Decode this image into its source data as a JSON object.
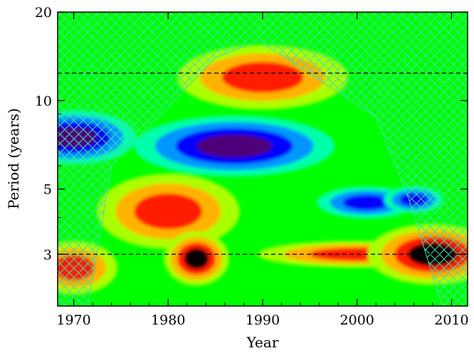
{
  "chart_data": {
    "type": "heatmap",
    "title": "",
    "xlabel": "Year",
    "ylabel": "Period (years)",
    "xlim": [
      1968.3,
      2011.7
    ],
    "ylim": [
      2.0,
      20.0
    ],
    "yscale": "log",
    "x_ticks": [
      1970,
      1980,
      1990,
      2000,
      2010
    ],
    "y_ticks": [
      3,
      5,
      10,
      20
    ],
    "reference_lines": [
      {
        "axis": "y",
        "value": 12.4,
        "style": "dashed"
      },
      {
        "axis": "y",
        "value": 3.0,
        "style": "dashed"
      }
    ],
    "cone_of_influence": {
      "style": "hatched",
      "left_edge": [
        [
          1968.3,
          2.0
        ],
        [
          1971.5,
          2.0
        ],
        [
          1974.0,
          6.0
        ],
        [
          1985.0,
          14.0
        ],
        [
          1989.6,
          16.0
        ]
      ],
      "right_edge": [
        [
          1989.6,
          16.0
        ],
        [
          2002.0,
          8.8
        ],
        [
          2005.5,
          4.6
        ],
        [
          2009.0,
          2.0
        ],
        [
          2011.7,
          2.0
        ]
      ]
    },
    "colormap": [
      "#000000",
      "#4d007a",
      "#0000ff",
      "#0096ff",
      "#00ffaa",
      "#00ff00",
      "#aaff00",
      "#ffb300",
      "#ff1a00",
      "#000000"
    ],
    "power_features": [
      {
        "x": 1990,
        "y": 12.0,
        "level": 8,
        "sx": 4.3,
        "sy": 0.12
      },
      {
        "x": 1987,
        "y": 7.0,
        "level": 1,
        "sx": 4.0,
        "sy": 0.09
      },
      {
        "x": 1970,
        "y": 7.5,
        "level": 1,
        "sx": 2.5,
        "sy": 0.08
      },
      {
        "x": 1980,
        "y": 4.2,
        "level": 8,
        "sx": 3.6,
        "sy": 0.14
      },
      {
        "x": 1983,
        "y": 2.9,
        "level": 9,
        "sx": 1.3,
        "sy": 0.08
      },
      {
        "x": 1970,
        "y": 2.7,
        "level": 8,
        "sx": 2.2,
        "sy": 0.1
      },
      {
        "x": 2000,
        "y": 3.0,
        "level": 8,
        "sx": 5.0,
        "sy": 0.05
      },
      {
        "x": 2008,
        "y": 3.0,
        "level": 9,
        "sx": 2.6,
        "sy": 0.09
      },
      {
        "x": 2001,
        "y": 4.5,
        "level": 2,
        "sx": 2.5,
        "sy": 0.06
      },
      {
        "x": 2006,
        "y": 4.6,
        "level": 2,
        "sx": 1.5,
        "sy": 0.05
      }
    ]
  }
}
